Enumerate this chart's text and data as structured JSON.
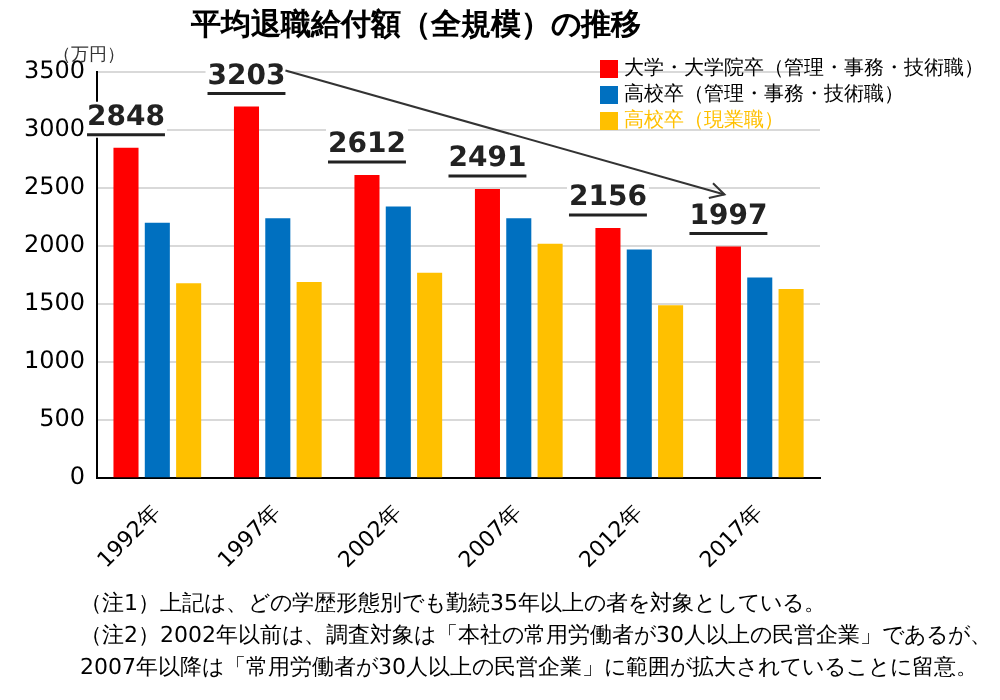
{
  "chart_data": {
    "type": "bar",
    "title": "平均退職給付額（全規模）の推移",
    "ylabel": "（万円）",
    "categories": [
      "1992年",
      "1997年",
      "2002年",
      "2007年",
      "2012年",
      "2017年"
    ],
    "series": [
      {
        "name": "大学・大学院卒（管理・事務・技術職）",
        "color": "#ff0000",
        "values": [
          2848,
          3203,
          2612,
          2491,
          2156,
          1997
        ],
        "value_labels": [
          "2848",
          "3203",
          "2612",
          "2491",
          "2156",
          "1997"
        ]
      },
      {
        "name": "高校卒（管理・事務・技術職）",
        "color": "#0070c0",
        "values": [
          2200,
          2240,
          2340,
          2240,
          1970,
          1730
        ]
      },
      {
        "name": "高校卒（現業職）",
        "color": "#ffc000",
        "values": [
          1680,
          1690,
          1770,
          2020,
          1490,
          1630
        ]
      }
    ],
    "ylim": [
      0,
      3500
    ],
    "yticks": [
      0,
      500,
      1000,
      1500,
      2000,
      2500,
      3000,
      3500
    ],
    "grid": "y",
    "legend": "top right",
    "annotations": [
      "（注1）上記は、どの学歴形態別でも勤続35年以上の者を対象としている。",
      "（注2）2002年以前は、調査対象は「本社の常用労働者が30人以上の民営企業」であるが、\n2007年以降は「常用労働者が30人以上の民営企業」に範囲が拡大されていることに留意。"
    ]
  }
}
